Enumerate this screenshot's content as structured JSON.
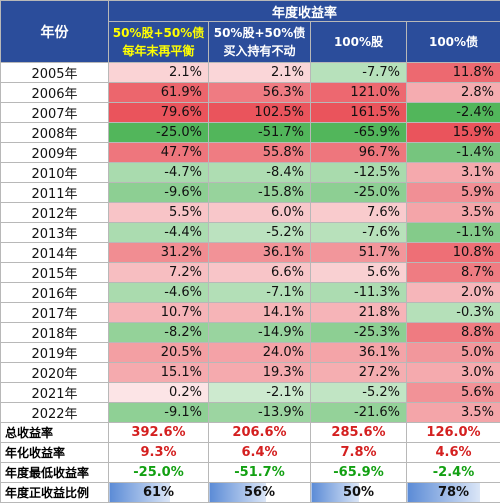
{
  "header": {
    "title": "年度收益率",
    "year_col": "年份",
    "columns": [
      {
        "line1": "50%股+50%债",
        "line2": "每年末再平衡",
        "highlight": true
      },
      {
        "line1": "50%股+50%债",
        "line2": "买入持有不动",
        "highlight": false
      },
      {
        "line1": "100%股",
        "line2": "",
        "highlight": false
      },
      {
        "line1": "100%债",
        "line2": "",
        "highlight": false
      }
    ]
  },
  "rows": [
    {
      "year": "2005年",
      "values": [
        "2.1%",
        "2.1%",
        "-7.7%",
        "11.8%"
      ]
    },
    {
      "year": "2006年",
      "values": [
        "61.9%",
        "56.3%",
        "121.0%",
        "2.8%"
      ]
    },
    {
      "year": "2007年",
      "values": [
        "79.6%",
        "102.5%",
        "161.5%",
        "-2.4%"
      ]
    },
    {
      "year": "2008年",
      "values": [
        "-25.0%",
        "-51.7%",
        "-65.9%",
        "15.9%"
      ]
    },
    {
      "year": "2009年",
      "values": [
        "47.7%",
        "55.8%",
        "96.7%",
        "-1.4%"
      ]
    },
    {
      "year": "2010年",
      "values": [
        "-4.7%",
        "-8.4%",
        "-12.5%",
        "3.1%"
      ]
    },
    {
      "year": "2011年",
      "values": [
        "-9.6%",
        "-15.8%",
        "-25.0%",
        "5.9%"
      ]
    },
    {
      "year": "2012年",
      "values": [
        "5.5%",
        "6.0%",
        "7.6%",
        "3.5%"
      ]
    },
    {
      "year": "2013年",
      "values": [
        "-4.4%",
        "-5.2%",
        "-7.6%",
        "-1.1%"
      ]
    },
    {
      "year": "2014年",
      "values": [
        "31.2%",
        "36.1%",
        "51.7%",
        "10.8%"
      ]
    },
    {
      "year": "2015年",
      "values": [
        "7.2%",
        "6.6%",
        "5.6%",
        "8.7%"
      ]
    },
    {
      "year": "2016年",
      "values": [
        "-4.6%",
        "-7.1%",
        "-11.3%",
        "2.0%"
      ]
    },
    {
      "year": "2017年",
      "values": [
        "10.7%",
        "14.1%",
        "21.8%",
        "-0.3%"
      ]
    },
    {
      "year": "2018年",
      "values": [
        "-8.2%",
        "-14.9%",
        "-25.3%",
        "8.8%"
      ]
    },
    {
      "year": "2019年",
      "values": [
        "20.5%",
        "24.0%",
        "36.1%",
        "5.0%"
      ]
    },
    {
      "year": "2020年",
      "values": [
        "15.1%",
        "19.3%",
        "27.2%",
        "3.0%"
      ]
    },
    {
      "year": "2021年",
      "values": [
        "0.2%",
        "-2.1%",
        "-5.2%",
        "5.6%"
      ]
    },
    {
      "year": "2022年",
      "values": [
        "-9.1%",
        "-13.9%",
        "-21.6%",
        "3.5%"
      ]
    }
  ],
  "summary": [
    {
      "label": "总收益率",
      "values": [
        "392.6%",
        "206.6%",
        "285.6%",
        "126.0%"
      ],
      "tone": "pos"
    },
    {
      "label": "年化收益率",
      "values": [
        "9.3%",
        "6.4%",
        "7.8%",
        "4.6%"
      ],
      "tone": "pos"
    },
    {
      "label": "年度最低收益率",
      "values": [
        "-25.0%",
        "-51.7%",
        "-65.9%",
        "-2.4%"
      ],
      "tone": "neg"
    },
    {
      "label": "年度正收益比例",
      "values": [
        "61%",
        "56%",
        "50%",
        "78%"
      ],
      "tone": "ratio",
      "fractions": [
        0.61,
        0.56,
        0.5,
        0.78
      ]
    }
  ],
  "colors": {
    "header_bg": "#2b4d9b",
    "header_highlight_text": "#ffff00",
    "positive_scale": "#e8414a",
    "negative_scale": "#3fae49",
    "positive_text": "#d42020",
    "negative_text": "#12a012",
    "data_bar": "#5b8bd6"
  }
}
